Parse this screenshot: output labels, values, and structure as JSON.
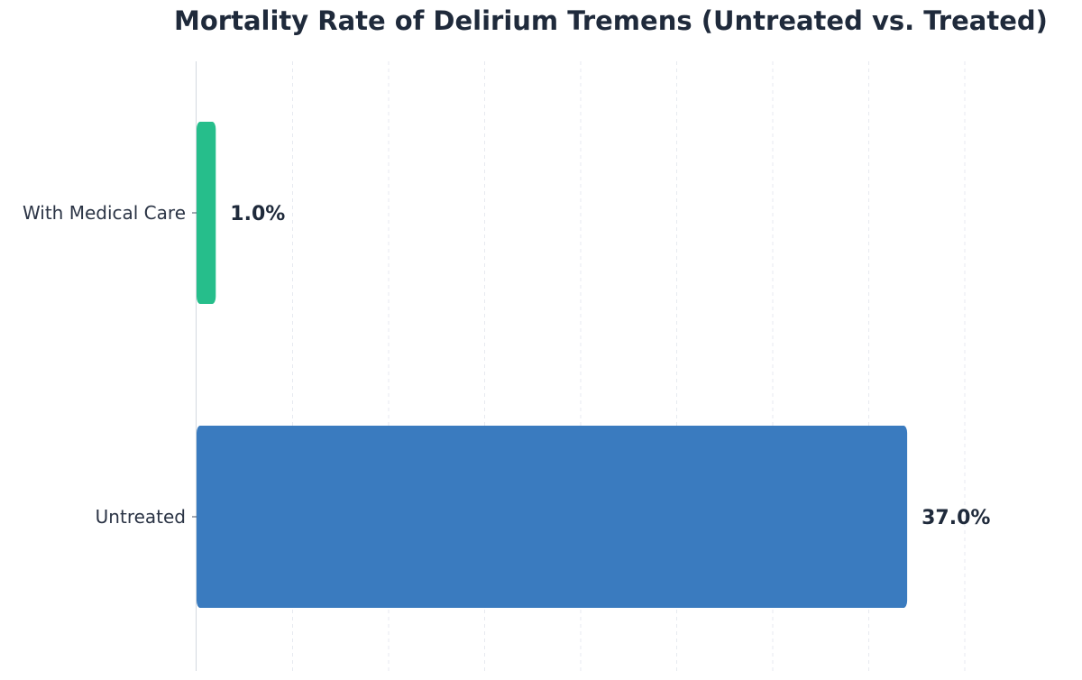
{
  "chart_data": {
    "type": "bar",
    "orientation": "horizontal",
    "title": "Mortality Rate of Delirium Tremens (Untreated vs. Treated)",
    "xlabel": "",
    "ylabel": "",
    "categories": [
      "With Medical Care",
      "Untreated"
    ],
    "values": [
      1.0,
      37.0
    ],
    "value_labels": [
      "1.0%",
      "37.0%"
    ],
    "colors": [
      "#26be8b",
      "#3a7bbf"
    ],
    "xlim": [
      0,
      44
    ],
    "grid": true,
    "legend": "none"
  }
}
